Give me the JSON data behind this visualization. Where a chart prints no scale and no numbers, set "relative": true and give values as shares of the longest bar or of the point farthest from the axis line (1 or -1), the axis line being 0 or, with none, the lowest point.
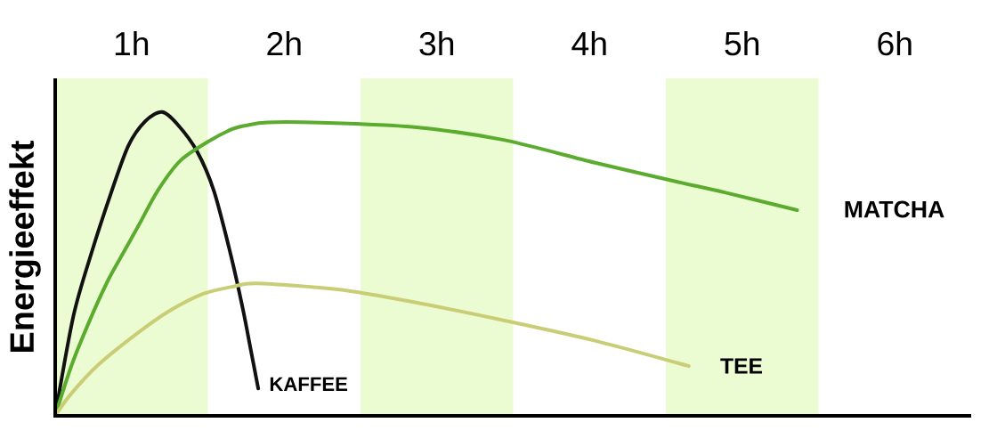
{
  "chart_data": {
    "type": "line",
    "ylabel": "Energieeffekt",
    "relative": true,
    "tick_labels": "x",
    "xlim": [
      0,
      6
    ],
    "xticks": [
      {
        "value": 0.5,
        "label": "1h"
      },
      {
        "value": 1.5,
        "label": "2h"
      },
      {
        "value": 2.5,
        "label": "3h"
      },
      {
        "value": 3.5,
        "label": "4h"
      },
      {
        "value": 4.5,
        "label": "5h"
      },
      {
        "value": 5.5,
        "label": "6h"
      }
    ],
    "bands": [
      {
        "axis": "x",
        "from": 0,
        "to": 1,
        "color": "#ebfcd2"
      },
      {
        "axis": "x",
        "from": 2,
        "to": 3,
        "color": "#ebfcd2"
      },
      {
        "axis": "x",
        "from": 4,
        "to": 5,
        "color": "#ebfcd2"
      }
    ],
    "series": [
      {
        "name": "KAFFEE",
        "color": "#111111",
        "x": [
          0,
          0.12,
          0.24,
          0.37,
          0.48,
          0.59,
          0.7,
          0.8,
          0.93,
          1.04,
          1.15,
          1.23,
          1.28,
          1.33
        ],
        "values": [
          0,
          0.33,
          0.54,
          0.74,
          0.89,
          0.97,
          1,
          0.96,
          0.87,
          0.74,
          0.53,
          0.35,
          0.22,
          0.09
        ]
      },
      {
        "name": "MATCHA",
        "color": "#5aab2e",
        "x": [
          0,
          0.11,
          0.24,
          0.35,
          0.45,
          0.55,
          0.67,
          0.82,
          1.01,
          1.16,
          1.25,
          1.39,
          1.74,
          2.34,
          2.93,
          3.53,
          4.07,
          4.38,
          4.86
        ],
        "values": [
          0,
          0.17,
          0.33,
          0.45,
          0.54,
          0.63,
          0.74,
          0.84,
          0.905,
          0.944,
          0.956,
          0.966,
          0.965,
          0.951,
          0.909,
          0.834,
          0.771,
          0.736,
          0.677
        ]
      },
      {
        "name": "TEE",
        "color": "#c9cd76",
        "x": [
          0,
          0.1,
          0.28,
          0.52,
          0.74,
          0.97,
          1.17,
          1.32,
          1.85,
          2.34,
          2.93,
          3.53,
          4.07,
          4.15
        ],
        "values": [
          0,
          0.07,
          0.167,
          0.265,
          0.343,
          0.402,
          0.426,
          0.436,
          0.416,
          0.375,
          0.315,
          0.248,
          0.175,
          0.164
        ]
      }
    ]
  }
}
